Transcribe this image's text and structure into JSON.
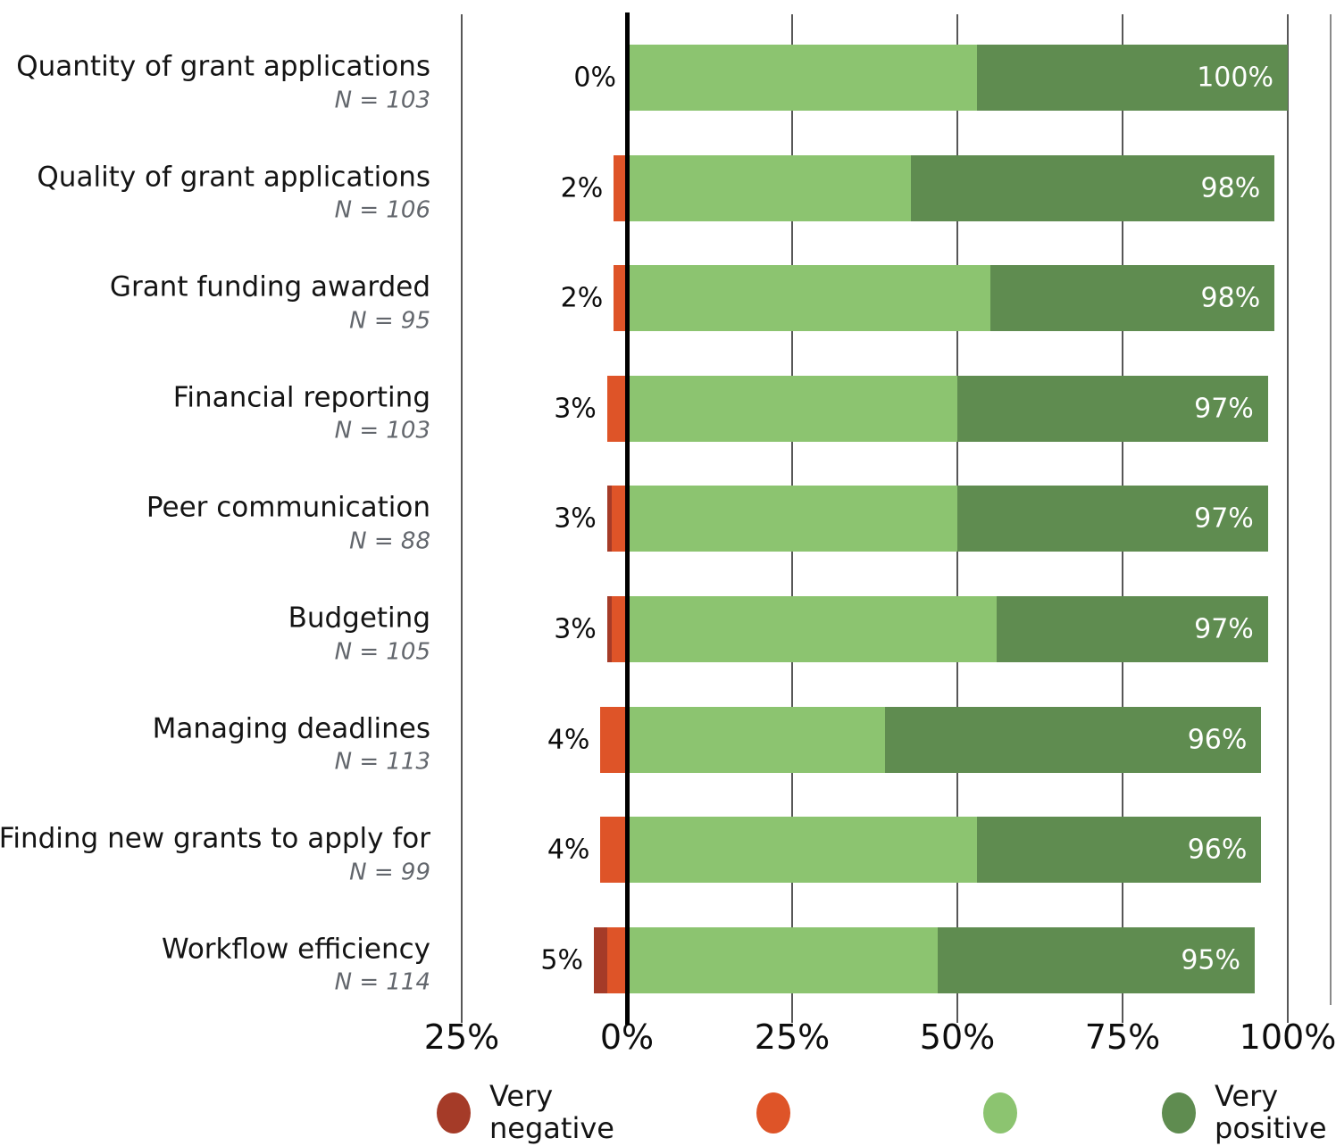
{
  "chart_data": {
    "type": "bar",
    "variant": "diverging-stacked-horizontal-likert",
    "title": "",
    "xlabel": "",
    "ylabel": "",
    "axis": {
      "tick_labels": [
        "25%",
        "0%",
        "25%",
        "50%",
        "75%",
        "100%"
      ],
      "tick_values": [
        -25,
        0,
        25,
        50,
        75,
        100
      ],
      "xlim": [
        -25.5,
        106.5
      ],
      "grid": true
    },
    "colors": {
      "very_negative": "#A53B28",
      "negative": "#DE5428",
      "positive": "#8CC470",
      "very_positive": "#5F8C50"
    },
    "legend": [
      {
        "label": "Very negative",
        "key": "very_negative",
        "color": "#A53B28"
      },
      {
        "label": "",
        "key": "negative",
        "color": "#DE5428"
      },
      {
        "label": "",
        "key": "positive",
        "color": "#8CC470"
      },
      {
        "label": "Very positive",
        "key": "very_positive",
        "color": "#5F8C50"
      }
    ],
    "rows": [
      {
        "category": "Quantity of grant applications",
        "n_label": "N = 103",
        "neg_label": "0%",
        "pos_label": "100%",
        "very_negative": 0,
        "negative": 0,
        "positive": 53,
        "very_positive": 47
      },
      {
        "category": "Quality of grant applications",
        "n_label": "N = 106",
        "neg_label": "2%",
        "pos_label": "98%",
        "very_negative": 0,
        "negative": 2,
        "positive": 43,
        "very_positive": 55
      },
      {
        "category": "Grant funding awarded",
        "n_label": "N = 95",
        "neg_label": "2%",
        "pos_label": "98%",
        "very_negative": 0,
        "negative": 2,
        "positive": 55,
        "very_positive": 43
      },
      {
        "category": "Financial reporting",
        "n_label": "N = 103",
        "neg_label": "3%",
        "pos_label": "97%",
        "very_negative": 0,
        "negative": 3,
        "positive": 50,
        "very_positive": 47
      },
      {
        "category": "Peer communication",
        "n_label": "N = 88",
        "neg_label": "3%",
        "pos_label": "97%",
        "very_negative": 0.7,
        "negative": 2.3,
        "positive": 50,
        "very_positive": 47
      },
      {
        "category": "Budgeting",
        "n_label": "N = 105",
        "neg_label": "3%",
        "pos_label": "97%",
        "very_negative": 0.7,
        "negative": 2.3,
        "positive": 56,
        "very_positive": 41
      },
      {
        "category": "Managing deadlines",
        "n_label": "N = 113",
        "neg_label": "4%",
        "pos_label": "96%",
        "very_negative": 0,
        "negative": 4,
        "positive": 39,
        "very_positive": 57
      },
      {
        "category": "Finding new grants to apply for",
        "n_label": "N = 99",
        "neg_label": "4%",
        "pos_label": "96%",
        "very_negative": 0,
        "negative": 4,
        "positive": 53,
        "very_positive": 43
      },
      {
        "category": "Workflow efficiency",
        "n_label": "N = 114",
        "neg_label": "5%",
        "pos_label": "95%",
        "very_negative": 2,
        "negative": 3,
        "positive": 47,
        "very_positive": 48
      }
    ]
  }
}
